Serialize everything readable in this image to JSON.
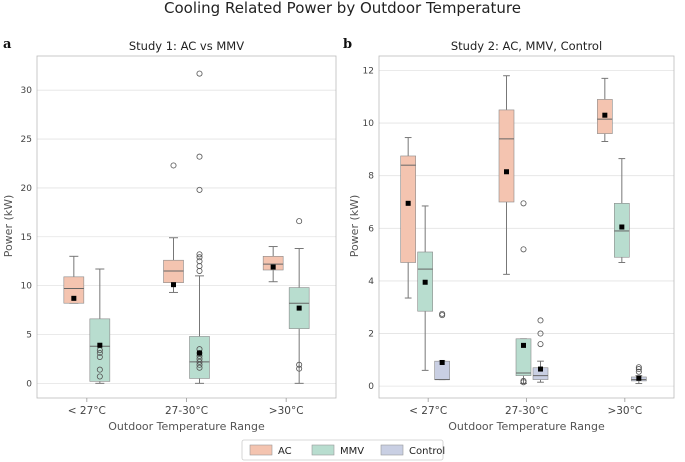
{
  "figure": {
    "title": "Cooling Related Power by Outdoor Temperature",
    "legend": [
      {
        "label": "AC",
        "color": "#f4c4b0"
      },
      {
        "label": "MMV",
        "color": "#b8ddcf"
      },
      {
        "label": "Control",
        "color": "#c9cfe3"
      }
    ]
  },
  "chart_data": [
    {
      "type": "box",
      "panel_label": "a",
      "title": "Study 1: AC vs MMV",
      "xlabel": "Outdoor Temperature Range",
      "ylabel": "Power (kW)",
      "ylim": [
        -1.5,
        33.5
      ],
      "yticks": [
        0,
        5,
        10,
        15,
        20,
        25,
        30
      ],
      "categories": [
        "< 27°C",
        "27-30°C",
        ">30°C"
      ],
      "series": [
        {
          "name": "AC",
          "color": "#f4c4b0",
          "boxes": [
            {
              "q1": 8.2,
              "median": 9.7,
              "q3": 10.9,
              "whislo": 8.2,
              "whishi": 13.0,
              "mean": 8.7,
              "fliers": []
            },
            {
              "q1": 10.3,
              "median": 11.5,
              "q3": 12.6,
              "whislo": 9.3,
              "whishi": 14.9,
              "mean": 10.1,
              "fliers": [
                22.3
              ]
            },
            {
              "q1": 11.6,
              "median": 12.2,
              "q3": 13.0,
              "whislo": 10.4,
              "whishi": 14.0,
              "mean": 11.9,
              "fliers": []
            }
          ]
        },
        {
          "name": "MMV",
          "color": "#b8ddcf",
          "boxes": [
            {
              "q1": 0.2,
              "median": 3.8,
              "q3": 6.6,
              "whislo": 0.0,
              "whishi": 11.7,
              "mean": 3.9,
              "fliers": [
                0.7,
                1.4,
                2.7,
                3.1,
                3.4
              ]
            },
            {
              "q1": 0.5,
              "median": 2.2,
              "q3": 4.8,
              "whislo": 0.0,
              "whishi": 11.0,
              "mean": 3.1,
              "fliers": [
                1.6,
                1.9,
                2.2,
                2.5,
                2.8,
                3.1,
                3.5,
                11.5,
                12.0,
                12.5,
                12.9,
                13.2,
                19.8,
                23.2,
                31.7
              ]
            },
            {
              "q1": 5.6,
              "median": 8.2,
              "q3": 9.8,
              "whislo": 0.0,
              "whishi": 13.8,
              "mean": 7.7,
              "fliers": [
                1.5,
                1.9,
                16.6
              ]
            }
          ]
        }
      ]
    },
    {
      "type": "box",
      "panel_label": "b",
      "title": "Study 2: AC, MMV, Control",
      "xlabel": "Outdoor Temperature Range",
      "ylabel": "Power (kW)",
      "ylim": [
        -0.45,
        12.55
      ],
      "yticks": [
        0,
        2,
        4,
        6,
        8,
        10,
        12
      ],
      "categories": [
        "< 27°C",
        "27-30°C",
        ">30°C"
      ],
      "series": [
        {
          "name": "AC",
          "color": "#f4c4b0",
          "boxes": [
            {
              "q1": 4.7,
              "median": 8.4,
              "q3": 8.75,
              "whislo": 3.35,
              "whishi": 9.45,
              "mean": 6.95,
              "fliers": []
            },
            {
              "q1": 7.0,
              "median": 9.4,
              "q3": 10.5,
              "whislo": 4.25,
              "whishi": 11.8,
              "mean": 8.15,
              "fliers": []
            },
            {
              "q1": 9.6,
              "median": 10.15,
              "q3": 10.9,
              "whislo": 9.3,
              "whishi": 11.7,
              "mean": 10.3,
              "fliers": []
            }
          ]
        },
        {
          "name": "MMV",
          "color": "#b8ddcf",
          "boxes": [
            {
              "q1": 2.85,
              "median": 4.45,
              "q3": 5.1,
              "whislo": 0.6,
              "whishi": 6.85,
              "mean": 3.95,
              "fliers": []
            },
            {
              "q1": 0.4,
              "median": 0.5,
              "q3": 1.8,
              "whislo": 0.1,
              "whishi": 1.8,
              "mean": 1.55,
              "fliers": [
                0.15,
                0.2,
                5.2,
                6.95
              ]
            },
            {
              "q1": 4.9,
              "median": 5.9,
              "q3": 6.95,
              "whislo": 4.7,
              "whishi": 8.65,
              "mean": 6.05,
              "fliers": []
            }
          ]
        },
        {
          "name": "Control",
          "color": "#c9cfe3",
          "boxes": [
            {
              "q1": 0.25,
              "median": 0.25,
              "q3": 0.95,
              "whislo": 0.25,
              "whishi": 0.95,
              "mean": 0.9,
              "fliers": [
                2.7,
                2.75
              ]
            },
            {
              "q1": 0.25,
              "median": 0.4,
              "q3": 0.7,
              "whislo": 0.15,
              "whishi": 0.95,
              "mean": 0.65,
              "fliers": [
                1.6,
                2.0,
                2.5
              ]
            },
            {
              "q1": 0.2,
              "median": 0.25,
              "q3": 0.35,
              "whislo": 0.1,
              "whishi": 0.4,
              "mean": 0.3,
              "fliers": [
                0.55,
                0.65,
                0.72
              ]
            }
          ]
        }
      ]
    }
  ]
}
